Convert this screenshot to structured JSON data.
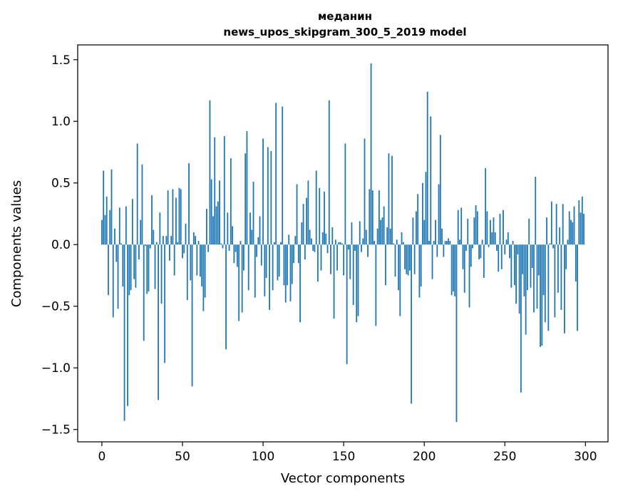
{
  "chart_data": {
    "type": "bar",
    "title_line1": "меданин",
    "title_line2": "news_upos_skipgram_300_5_2019 model",
    "xlabel": "Vector components",
    "ylabel": "Components values",
    "xlim": [
      -15,
      314
    ],
    "ylim": [
      -1.6,
      1.62
    ],
    "x_ticks": [
      0,
      50,
      100,
      150,
      200,
      250,
      300
    ],
    "y_ticks": [
      -1.5,
      -1.0,
      -0.5,
      0.0,
      0.5,
      1.0,
      1.5
    ],
    "y_tick_labels": [
      "−1.5",
      "−1.0",
      "−0.5",
      "0.0",
      "0.5",
      "1.0",
      "1.5"
    ],
    "bar_color": "#1f77b4",
    "values": [
      0.2,
      0.6,
      0.24,
      0.39,
      -0.41,
      0.28,
      0.61,
      -0.59,
      0.13,
      -0.14,
      -0.52,
      0.3,
      0.01,
      -0.34,
      -1.43,
      0.31,
      -1.31,
      -0.41,
      -0.37,
      0.37,
      -0.28,
      -0.35,
      0.82,
      -0.12,
      0.2,
      0.65,
      -0.78,
      -0.01,
      -0.4,
      -0.38,
      -0.03,
      0.4,
      0.12,
      -0.36,
      0.02,
      -1.26,
      0.26,
      -0.48,
      0.07,
      -0.96,
      0.07,
      0.44,
      -0.13,
      0.07,
      0.45,
      -0.25,
      0.38,
      0.02,
      0.46,
      0.45,
      -0.11,
      -0.07,
      0.17,
      -0.45,
      0.66,
      -0.29,
      -1.15,
      0.1,
      0.07,
      -0.25,
      0.03,
      -0.26,
      -0.34,
      -0.54,
      -0.43,
      0.29,
      -0.06,
      1.17,
      0.53,
      0.23,
      0.87,
      0.31,
      0.35,
      0.52,
      0.01,
      -0.03,
      0.88,
      -0.85,
      0.26,
      -0.05,
      0.7,
      0.15,
      -0.15,
      -0.06,
      -0.18,
      -0.62,
      0.03,
      -0.55,
      -0.21,
      0.74,
      0.92,
      -0.37,
      0.26,
      0.12,
      0.51,
      -0.43,
      -0.1,
      0.06,
      0.23,
      -0.17,
      0.86,
      -0.42,
      -0.27,
      0.79,
      -0.53,
      0.76,
      -0.37,
      0.02,
      1.15,
      -0.29,
      -0.26,
      0.02,
      1.12,
      -0.33,
      -0.47,
      -0.33,
      0.08,
      -0.46,
      -0.32,
      -0.15,
      0.07,
      0.49,
      -0.15,
      -0.63,
      0.18,
      0.33,
      -0.12,
      0.38,
      0.52,
      0.12,
      0.05,
      -0.05,
      -0.06,
      0.6,
      -0.3,
      0.46,
      -0.21,
      0.1,
      0.43,
      0.09,
      -0.07,
      1.17,
      -0.24,
      0.14,
      -0.6,
      0.04,
      -0.21,
      0.02,
      0.02,
      0.01,
      -0.25,
      0.82,
      -0.97,
      -0.04,
      -0.28,
      0.18,
      -0.49,
      -0.05,
      -0.63,
      -0.58,
      0.19,
      -0.06,
      0.05,
      0.86,
      0.12,
      -0.1,
      0.45,
      1.47,
      0.44,
      0.03,
      -0.66,
      0.13,
      0.44,
      0.2,
      0.22,
      0.31,
      -0.33,
      0.14,
      0.74,
      0.13,
      0.72,
      0.01,
      -0.26,
      0.04,
      -0.37,
      -0.58,
      0.1,
      0.02,
      -0.2,
      -0.24,
      -0.25,
      -0.21,
      -1.29,
      0.22,
      -0.24,
      0.27,
      0.41,
      -0.43,
      -0.34,
      0.5,
      0.2,
      0.59,
      1.24,
      0.03,
      1.04,
      -0.28,
      0.03,
      0.2,
      -0.1,
      0.49,
      0.89,
      0.13,
      -0.1,
      0.03,
      0.03,
      0.05,
      0.03,
      -0.41,
      -0.38,
      -0.42,
      -1.44,
      0.28,
      0.04,
      0.3,
      -0.2,
      -0.39,
      -0.05,
      0.21,
      -0.51,
      -0.18,
      -0.03,
      0.22,
      0.32,
      0.27,
      -0.12,
      -0.11,
      0.04,
      -0.27,
      0.62,
      0.27,
      -0.02,
      0.2,
      0.1,
      0.22,
      0.1,
      -0.05,
      -0.22,
      0.25,
      -0.2,
      0.28,
      -0.08,
      0.04,
      0.1,
      -0.11,
      -0.35,
      0.03,
      -0.33,
      -0.48,
      -0.08,
      -0.56,
      -1.2,
      -0.24,
      -0.42,
      -0.73,
      -0.37,
      0.21,
      -0.35,
      -0.19,
      -0.55,
      0.55,
      -0.52,
      -0.25,
      -0.83,
      -0.82,
      -0.41,
      -0.63,
      0.22,
      -0.7,
      0.01,
      0.35,
      -0.03,
      -0.59,
      0.33,
      -0.39,
      0.14,
      -0.53,
      0.33,
      -0.72,
      -0.2,
      0.04,
      0.27,
      0.2,
      0.18,
      0.31,
      -0.3,
      -0.7,
      0.36,
      0.26,
      0.39,
      0.25
    ]
  }
}
